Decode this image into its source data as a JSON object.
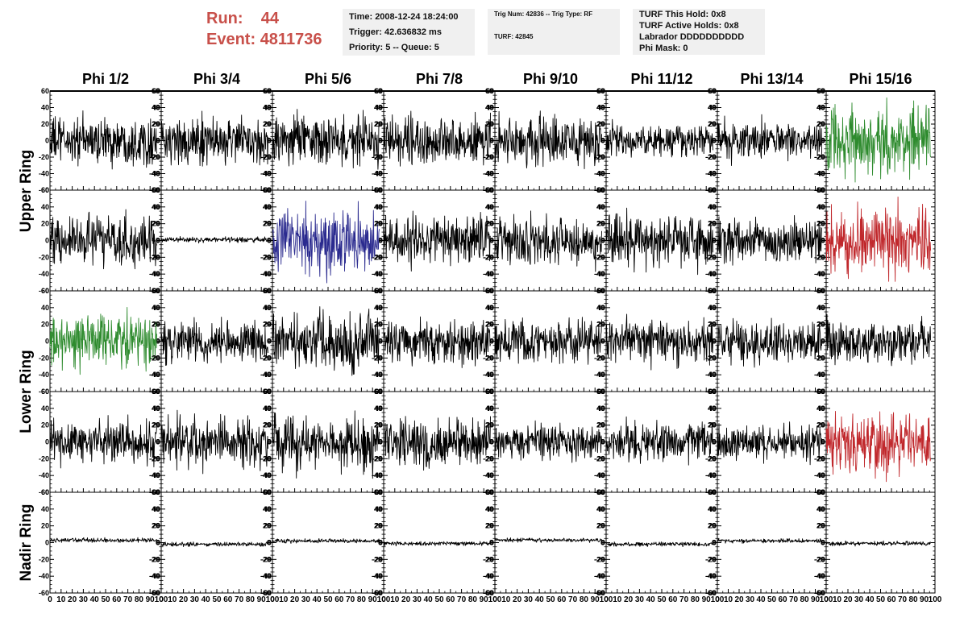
{
  "header": {
    "run_label": "Run:",
    "run_value": "44",
    "event_label": "Event:",
    "event_value": "4811736",
    "info1": [
      "Time: 2008-12-24 18:24:00",
      "Trigger: 42.636832 ms",
      "Priority: 5 -- Queue: 5"
    ],
    "info2": [
      "Trig Num: 42836 -- Trig Type: RF",
      "TURF: 42845"
    ],
    "info3": [
      "TURF This Hold: 0x8",
      "TURF Active Holds: 0x8",
      "Labrador DDDDDDDDDD",
      "Phi Mask: 0"
    ]
  },
  "colors": {
    "default": "#000000",
    "green": "#2e8b2e",
    "red": "#c0282c",
    "blue": "#2b2b8f",
    "header_accent": "#c8504a"
  },
  "chart_data": {
    "type": "line",
    "layout": "grid",
    "column_titles": [
      "Phi 1/2",
      "Phi 3/4",
      "Phi 5/6",
      "Phi 7/8",
      "Phi 9/10",
      "Phi 11/12",
      "Phi 13/14",
      "Phi 15/16"
    ],
    "ring_labels": [
      "Upper Ring",
      "Lower Ring",
      "Nadir Ring"
    ],
    "xlim": [
      0,
      100
    ],
    "x_ticks": [
      0,
      10,
      20,
      30,
      40,
      50,
      60,
      70,
      80,
      90,
      100
    ],
    "x_tick_labels": [
      "0",
      "10",
      "20",
      "30",
      "40",
      "50",
      "60",
      "70",
      "80",
      "90",
      "100"
    ],
    "ylim": [
      -60,
      60
    ],
    "y_ticks": [
      -60,
      -40,
      -20,
      0,
      20,
      40,
      60
    ],
    "y_tick_labels": [
      "-60",
      "-40",
      "-20",
      "0",
      "20",
      "40",
      "60"
    ],
    "samples_per_trace": 260,
    "trace_x_range": [
      0,
      96
    ],
    "panels": [
      {
        "ring": "Upper Ring",
        "row": 0,
        "col": 0,
        "color": "default",
        "amplitude": 14,
        "offset": 0
      },
      {
        "ring": "Upper Ring",
        "row": 0,
        "col": 1,
        "color": "default",
        "amplitude": 14,
        "offset": 0
      },
      {
        "ring": "Upper Ring",
        "row": 0,
        "col": 2,
        "color": "default",
        "amplitude": 14,
        "offset": 0
      },
      {
        "ring": "Upper Ring",
        "row": 0,
        "col": 3,
        "color": "default",
        "amplitude": 14,
        "offset": 0
      },
      {
        "ring": "Upper Ring",
        "row": 0,
        "col": 4,
        "color": "default",
        "amplitude": 14,
        "offset": 0
      },
      {
        "ring": "Upper Ring",
        "row": 0,
        "col": 5,
        "color": "default",
        "amplitude": 9,
        "offset": 0
      },
      {
        "ring": "Upper Ring",
        "row": 0,
        "col": 6,
        "color": "default",
        "amplitude": 11,
        "offset": 0
      },
      {
        "ring": "Upper Ring",
        "row": 0,
        "col": 7,
        "color": "green",
        "amplitude": 20,
        "offset": 0
      },
      {
        "ring": "Upper Ring",
        "row": 1,
        "col": 0,
        "color": "default",
        "amplitude": 14,
        "offset": 0
      },
      {
        "ring": "Upper Ring",
        "row": 1,
        "col": 1,
        "color": "default",
        "amplitude": 1.5,
        "offset": 1
      },
      {
        "ring": "Upper Ring",
        "row": 1,
        "col": 2,
        "color": "blue",
        "amplitude": 18,
        "offset": 0
      },
      {
        "ring": "Upper Ring",
        "row": 1,
        "col": 3,
        "color": "default",
        "amplitude": 14,
        "offset": 0
      },
      {
        "ring": "Upper Ring",
        "row": 1,
        "col": 4,
        "color": "default",
        "amplitude": 14,
        "offset": 0
      },
      {
        "ring": "Upper Ring",
        "row": 1,
        "col": 5,
        "color": "default",
        "amplitude": 15,
        "offset": 0
      },
      {
        "ring": "Upper Ring",
        "row": 1,
        "col": 6,
        "color": "default",
        "amplitude": 12,
        "offset": 0
      },
      {
        "ring": "Upper Ring",
        "row": 1,
        "col": 7,
        "color": "red",
        "amplitude": 19,
        "offset": 0
      },
      {
        "ring": "Lower Ring",
        "row": 2,
        "col": 0,
        "color": "green",
        "amplitude": 15,
        "offset": 0
      },
      {
        "ring": "Lower Ring",
        "row": 2,
        "col": 1,
        "color": "default",
        "amplitude": 12,
        "offset": 0
      },
      {
        "ring": "Lower Ring",
        "row": 2,
        "col": 2,
        "color": "default",
        "amplitude": 16,
        "offset": 0
      },
      {
        "ring": "Lower Ring",
        "row": 2,
        "col": 3,
        "color": "default",
        "amplitude": 13,
        "offset": 0
      },
      {
        "ring": "Lower Ring",
        "row": 2,
        "col": 4,
        "color": "default",
        "amplitude": 12,
        "offset": 0
      },
      {
        "ring": "Lower Ring",
        "row": 2,
        "col": 5,
        "color": "default",
        "amplitude": 13,
        "offset": 0
      },
      {
        "ring": "Lower Ring",
        "row": 2,
        "col": 6,
        "color": "default",
        "amplitude": 13,
        "offset": 0
      },
      {
        "ring": "Lower Ring",
        "row": 2,
        "col": 7,
        "color": "default",
        "amplitude": 13,
        "offset": 0
      },
      {
        "ring": "Lower Ring",
        "row": 3,
        "col": 0,
        "color": "default",
        "amplitude": 12,
        "offset": 0
      },
      {
        "ring": "Lower Ring",
        "row": 3,
        "col": 1,
        "color": "default",
        "amplitude": 14,
        "offset": 0
      },
      {
        "ring": "Lower Ring",
        "row": 3,
        "col": 2,
        "color": "default",
        "amplitude": 15,
        "offset": 0
      },
      {
        "ring": "Lower Ring",
        "row": 3,
        "col": 3,
        "color": "default",
        "amplitude": 14,
        "offset": 0
      },
      {
        "ring": "Lower Ring",
        "row": 3,
        "col": 4,
        "color": "default",
        "amplitude": 10,
        "offset": 0
      },
      {
        "ring": "Lower Ring",
        "row": 3,
        "col": 5,
        "color": "default",
        "amplitude": 11,
        "offset": 0
      },
      {
        "ring": "Lower Ring",
        "row": 3,
        "col": 6,
        "color": "default",
        "amplitude": 10,
        "offset": 0
      },
      {
        "ring": "Lower Ring",
        "row": 3,
        "col": 7,
        "color": "red",
        "amplitude": 18,
        "offset": 0
      },
      {
        "ring": "Nadir Ring",
        "row": 4,
        "col": 0,
        "color": "default",
        "amplitude": 1.2,
        "offset": 3
      },
      {
        "ring": "Nadir Ring",
        "row": 4,
        "col": 1,
        "color": "default",
        "amplitude": 1.2,
        "offset": -2
      },
      {
        "ring": "Nadir Ring",
        "row": 4,
        "col": 2,
        "color": "default",
        "amplitude": 1.2,
        "offset": 2
      },
      {
        "ring": "Nadir Ring",
        "row": 4,
        "col": 3,
        "color": "default",
        "amplitude": 1.2,
        "offset": -1
      },
      {
        "ring": "Nadir Ring",
        "row": 4,
        "col": 4,
        "color": "default",
        "amplitude": 1.2,
        "offset": 3
      },
      {
        "ring": "Nadir Ring",
        "row": 4,
        "col": 5,
        "color": "default",
        "amplitude": 1.2,
        "offset": -2
      },
      {
        "ring": "Nadir Ring",
        "row": 4,
        "col": 6,
        "color": "default",
        "amplitude": 1.2,
        "offset": 2
      },
      {
        "ring": "Nadir Ring",
        "row": 4,
        "col": 7,
        "color": "default",
        "amplitude": 1.2,
        "offset": -1
      }
    ]
  }
}
